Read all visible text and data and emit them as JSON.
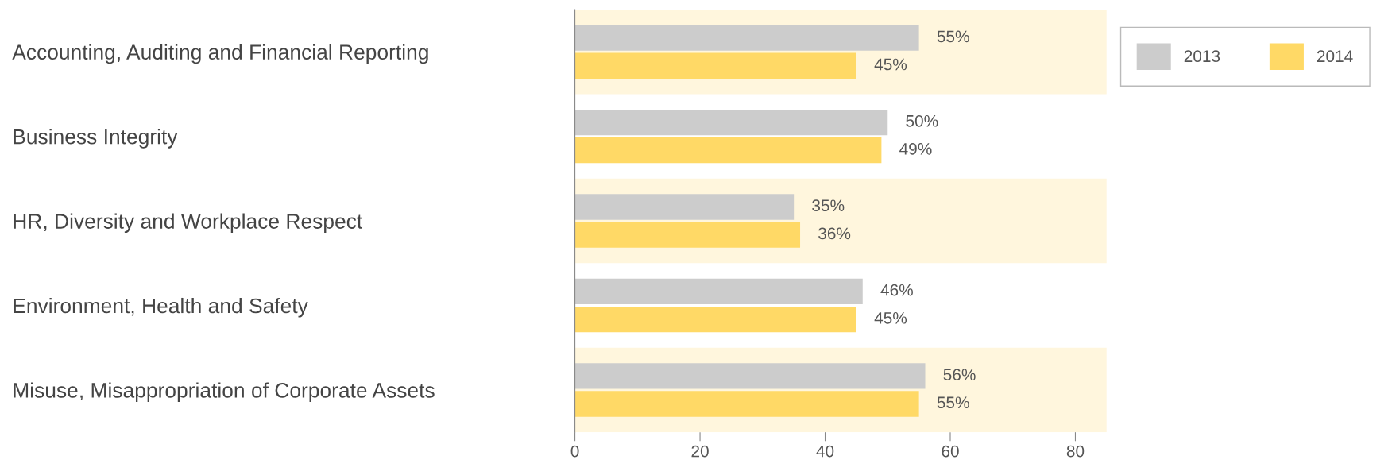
{
  "chart_data": {
    "type": "bar",
    "orientation": "horizontal",
    "categories": [
      "Accounting, Auditing and Financial Reporting",
      "Business Integrity",
      "HR, Diversity and Workplace Respect",
      "Environment, Health and Safety",
      "Misuse, Misappropriation of Corporate Assets"
    ],
    "series": [
      {
        "name": "2013",
        "color": "#cccccc",
        "values": [
          55,
          50,
          35,
          46,
          56
        ],
        "value_labels": [
          "55%",
          "50%",
          "35%",
          "46%",
          "56%"
        ]
      },
      {
        "name": "2014",
        "color": "#ffd966",
        "values": [
          45,
          49,
          36,
          45,
          55
        ],
        "value_labels": [
          "45%",
          "49%",
          "36%",
          "45%",
          "55%"
        ]
      }
    ],
    "xlim": [
      0,
      85
    ],
    "xticks": [
      0,
      20,
      40,
      60,
      80
    ],
    "grid": false,
    "legend": "top right",
    "bands": [
      {
        "axis": "y",
        "from": "Accounting, Auditing and Financial Reporting",
        "to": "Accounting, Auditing and Financial Reporting",
        "color": "#fff6dd"
      },
      {
        "axis": "y",
        "from": "HR, Diversity and Workplace Respect",
        "to": "HR, Diversity and Workplace Respect",
        "color": "#fff6dd"
      },
      {
        "axis": "y",
        "from": "Misuse, Misappropriation of Corporate Assets",
        "to": "Misuse, Misappropriation of Corporate Assets",
        "color": "#fff6dd"
      }
    ]
  }
}
